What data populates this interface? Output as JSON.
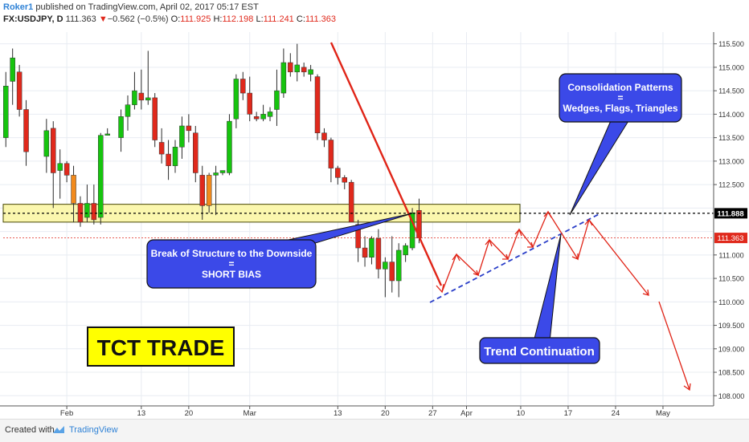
{
  "header": {
    "line1_author": "Roker1",
    "line1_rest": "published on TradingView.com, April 02, 2017 05:17 EST",
    "symbol": "FX:USDJPY, D",
    "last": "111.363",
    "change_arrow": "▼",
    "change": "−0.562 (−0.5%)",
    "o_label": "O:",
    "o_value": "111.925",
    "h_label": "H:",
    "h_value": "112.198",
    "l_label": "L:",
    "l_value": "111.241",
    "c_label": "C:",
    "c_value": "111.363"
  },
  "footer": {
    "created": "Created with",
    "brand": "TradingView"
  },
  "colors": {
    "bull": "#16c40e",
    "bear": "#e0291c",
    "wick": "#2b2b2b",
    "orange": "#f28a1c",
    "zone_fill": "#fbf7ae",
    "zone_stroke": "#444400",
    "callout": "#3b49e8",
    "trend": "#e02417",
    "channel": "#2a3ec8",
    "grid": "#e8ecf2",
    "last_price": "#e0291c"
  },
  "annotations": {
    "bos_line1": "Break of Structure to the Downside",
    "bos_line2": "=",
    "bos_line3": "SHORT BIAS",
    "consol_line1": "Consolidation Patterns",
    "consol_line2": "=",
    "consol_line3": "Wedges, Flags, Triangles",
    "trend": "Trend Continuation",
    "tct": "TCT TRADE"
  },
  "chart_data": {
    "type": "candlestick",
    "y_range": [
      107.8,
      115.75
    ],
    "price_ticks": [
      "115.500",
      "115.000",
      "114.500",
      "114.000",
      "113.500",
      "113.000",
      "112.500",
      "112.000",
      "111.500",
      "111.000",
      "110.500",
      "110.000",
      "109.500",
      "109.000",
      "108.500",
      "108.000"
    ],
    "price_tick_values": [
      115.5,
      115.0,
      114.5,
      114.0,
      113.5,
      113.0,
      112.5,
      112.0,
      111.5,
      111.0,
      110.5,
      110.0,
      109.5,
      109.0,
      108.5,
      108.0
    ],
    "time_labels": [
      "Feb",
      "13",
      "20",
      "Mar",
      "13",
      "20",
      "27",
      "Apr",
      "10",
      "17",
      "24",
      "May"
    ],
    "time_label_days": [
      33,
      44,
      51,
      60,
      73,
      80,
      87,
      92,
      100,
      107,
      114,
      121
    ],
    "horizontal_level": {
      "value": 111.888,
      "label": "111.888"
    },
    "last_price": {
      "value": 111.363,
      "label": "111.363"
    },
    "supply_zone": [
      111.7,
      112.08
    ],
    "candles": [
      {
        "d": 24,
        "o": 113.5,
        "h": 114.9,
        "l": 113.3,
        "c": 114.6
      },
      {
        "d": 25,
        "o": 114.7,
        "h": 115.4,
        "l": 114.2,
        "c": 115.2
      },
      {
        "d": 26,
        "o": 114.9,
        "h": 115.05,
        "l": 113.95,
        "c": 114.1
      },
      {
        "d": 27,
        "o": 114.1,
        "h": 114.3,
        "l": 112.9,
        "c": 113.2
      },
      {
        "d": 30,
        "o": 113.1,
        "h": 113.9,
        "l": 112.75,
        "c": 113.65
      },
      {
        "d": 31,
        "o": 113.7,
        "h": 113.85,
        "l": 112.0,
        "c": 112.75
      },
      {
        "d": 32,
        "o": 112.8,
        "h": 113.25,
        "l": 112.2,
        "c": 112.95
      },
      {
        "d": 33,
        "o": 112.95,
        "h": 113.0,
        "l": 112.55,
        "c": 112.7
      },
      {
        "d": 34,
        "o": 112.7,
        "h": 112.9,
        "l": 111.7,
        "c": 112.1
      },
      {
        "d": 35,
        "o": 112.1,
        "h": 112.25,
        "l": 111.6,
        "c": 111.7
      },
      {
        "d": 36,
        "o": 111.8,
        "h": 112.5,
        "l": 111.7,
        "c": 112.1
      },
      {
        "d": 37,
        "o": 112.1,
        "h": 112.5,
        "l": 111.65,
        "c": 111.75
      },
      {
        "d": 38,
        "o": 111.8,
        "h": 113.6,
        "l": 111.65,
        "c": 113.55
      },
      {
        "d": 39,
        "o": 113.55,
        "h": 113.7,
        "l": 113.55,
        "c": 113.58
      },
      {
        "d": 41,
        "o": 113.5,
        "h": 114.1,
        "l": 113.2,
        "c": 113.95
      },
      {
        "d": 42,
        "o": 113.95,
        "h": 114.4,
        "l": 113.65,
        "c": 114.2
      },
      {
        "d": 43,
        "o": 114.2,
        "h": 114.9,
        "l": 114.1,
        "c": 114.5
      },
      {
        "d": 44,
        "o": 114.45,
        "h": 114.95,
        "l": 114.1,
        "c": 114.3
      },
      {
        "d": 45,
        "o": 114.3,
        "h": 115.35,
        "l": 114.2,
        "c": 114.35
      },
      {
        "d": 46,
        "o": 114.35,
        "h": 114.45,
        "l": 113.3,
        "c": 113.45
      },
      {
        "d": 47,
        "o": 113.4,
        "h": 113.7,
        "l": 112.95,
        "c": 113.15
      },
      {
        "d": 48,
        "o": 113.15,
        "h": 113.45,
        "l": 112.6,
        "c": 112.9
      },
      {
        "d": 49,
        "o": 112.9,
        "h": 113.45,
        "l": 112.75,
        "c": 113.3
      },
      {
        "d": 50,
        "o": 113.3,
        "h": 113.95,
        "l": 113.05,
        "c": 113.75
      },
      {
        "d": 51,
        "o": 113.75,
        "h": 114.0,
        "l": 113.4,
        "c": 113.65
      },
      {
        "d": 52,
        "o": 113.6,
        "h": 113.75,
        "l": 112.55,
        "c": 112.75
      },
      {
        "d": 53,
        "o": 112.7,
        "h": 112.9,
        "l": 111.75,
        "c": 112.05
      },
      {
        "d": 54,
        "o": 112.05,
        "h": 112.75,
        "l": 111.9,
        "c": 112.7
      },
      {
        "d": 55,
        "o": 112.7,
        "h": 112.9,
        "l": 111.85,
        "c": 112.75
      },
      {
        "d": 56,
        "o": 112.75,
        "h": 112.8,
        "l": 112.7,
        "c": 112.8
      },
      {
        "d": 57,
        "o": 112.75,
        "h": 114.0,
        "l": 112.7,
        "c": 113.85
      },
      {
        "d": 58,
        "o": 113.9,
        "h": 114.85,
        "l": 113.7,
        "c": 114.75
      },
      {
        "d": 59,
        "o": 114.75,
        "h": 114.9,
        "l": 114.3,
        "c": 114.45
      },
      {
        "d": 60,
        "o": 114.45,
        "h": 114.8,
        "l": 113.85,
        "c": 114.0
      },
      {
        "d": 61,
        "o": 113.95,
        "h": 114.05,
        "l": 113.85,
        "c": 113.9
      },
      {
        "d": 62,
        "o": 113.9,
        "h": 114.2,
        "l": 113.85,
        "c": 114.0
      },
      {
        "d": 63,
        "o": 113.95,
        "h": 114.15,
        "l": 113.85,
        "c": 114.05
      },
      {
        "d": 64,
        "o": 114.1,
        "h": 114.95,
        "l": 113.75,
        "c": 114.5
      },
      {
        "d": 65,
        "o": 114.45,
        "h": 115.4,
        "l": 114.35,
        "c": 115.1
      },
      {
        "d": 66,
        "o": 115.1,
        "h": 115.3,
        "l": 114.8,
        "c": 114.9
      },
      {
        "d": 67,
        "o": 114.9,
        "h": 115.5,
        "l": 114.7,
        "c": 115.05
      },
      {
        "d": 68,
        "o": 115.0,
        "h": 115.1,
        "l": 114.8,
        "c": 114.9
      },
      {
        "d": 69,
        "o": 114.85,
        "h": 115.05,
        "l": 114.7,
        "c": 114.95
      },
      {
        "d": 70,
        "o": 114.8,
        "h": 114.85,
        "l": 113.45,
        "c": 113.6
      },
      {
        "d": 71,
        "o": 113.6,
        "h": 113.7,
        "l": 113.3,
        "c": 113.45
      },
      {
        "d": 72,
        "o": 113.45,
        "h": 113.5,
        "l": 112.55,
        "c": 112.85
      },
      {
        "d": 73,
        "o": 112.85,
        "h": 112.9,
        "l": 112.5,
        "c": 112.65
      },
      {
        "d": 74,
        "o": 112.65,
        "h": 112.7,
        "l": 112.4,
        "c": 112.55
      },
      {
        "d": 75,
        "o": 112.55,
        "h": 112.6,
        "l": 111.7,
        "c": 111.7
      },
      {
        "d": 76,
        "o": 111.65,
        "h": 111.75,
        "l": 110.85,
        "c": 111.15
      },
      {
        "d": 77,
        "o": 111.15,
        "h": 111.4,
        "l": 110.75,
        "c": 110.95
      },
      {
        "d": 78,
        "o": 110.95,
        "h": 111.4,
        "l": 110.8,
        "c": 111.35
      },
      {
        "d": 79,
        "o": 111.35,
        "h": 111.55,
        "l": 110.5,
        "c": 110.7
      },
      {
        "d": 80,
        "o": 110.7,
        "h": 110.95,
        "l": 110.1,
        "c": 110.85
      },
      {
        "d": 81,
        "o": 110.85,
        "h": 111.4,
        "l": 110.2,
        "c": 110.45
      },
      {
        "d": 82,
        "o": 110.45,
        "h": 111.25,
        "l": 110.1,
        "c": 111.1
      },
      {
        "d": 83,
        "o": 111.0,
        "h": 111.25,
        "l": 110.85,
        "c": 111.2
      },
      {
        "d": 84,
        "o": 111.15,
        "h": 112.0,
        "l": 111.1,
        "c": 111.9
      },
      {
        "d": 85,
        "o": 111.95,
        "h": 112.2,
        "l": 111.25,
        "c": 111.36
      }
    ],
    "special_candles": {
      "orange": [
        34,
        54
      ]
    }
  }
}
